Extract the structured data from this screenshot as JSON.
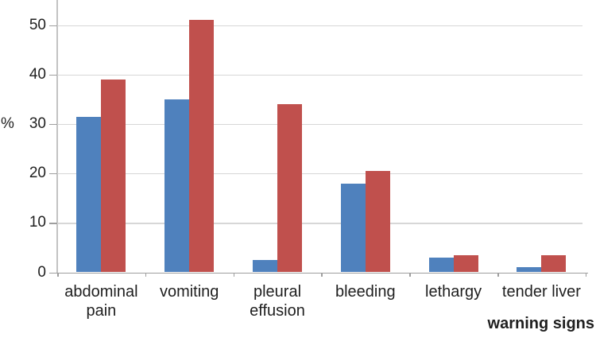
{
  "chart_data": {
    "type": "bar",
    "categories": [
      "abdominal pain",
      "vomiting",
      "pleural effusion",
      "bleeding",
      "lethargy",
      "tender liver"
    ],
    "series": [
      {
        "name": "blue",
        "color": "#4F81BD",
        "values": [
          31.5,
          35,
          2.5,
          18,
          3,
          1
        ]
      },
      {
        "name": "red",
        "color": "#C0504D",
        "values": [
          39,
          51,
          34,
          20.5,
          3.5,
          3.5
        ]
      }
    ],
    "title": "",
    "xlabel": "warning signs",
    "ylabel": "%",
    "ylim": [
      0,
      55
    ],
    "yticks": [
      0,
      10,
      20,
      30,
      40,
      50
    ],
    "grid": true,
    "legend": "none"
  },
  "colors": {
    "gridline": "#d7d7d7",
    "axis": "#9e9e9e",
    "text": "#1f1f1f",
    "background": "#ffffff"
  }
}
